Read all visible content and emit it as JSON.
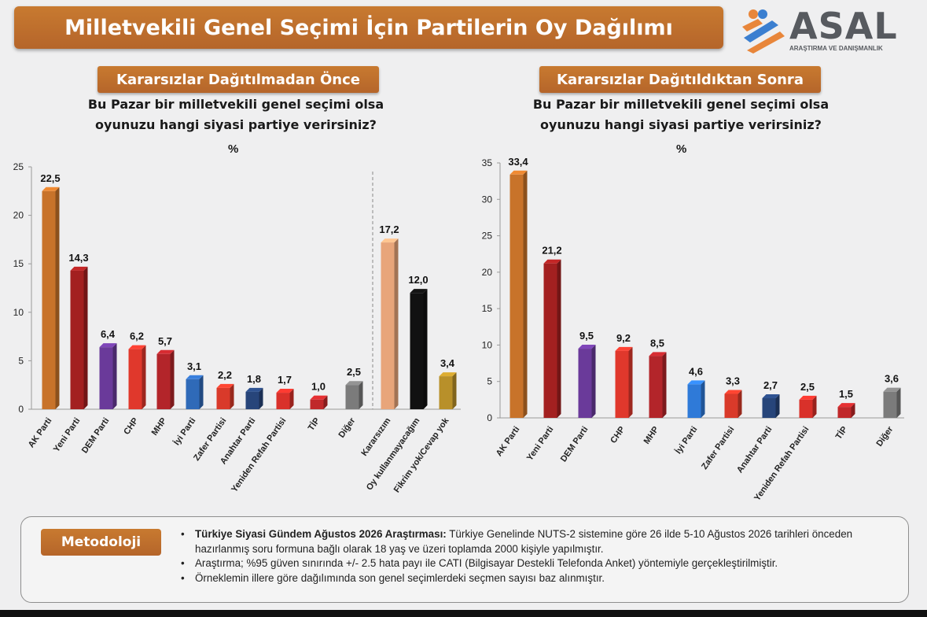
{
  "title": "Milletvekili Genel Seçimi İçin Partilerin Oy Dağılımı",
  "logo": {
    "name": "ASAL",
    "subtitle": "ARAŞTIRMA VE DANIŞMANLIK"
  },
  "panels": {
    "left": {
      "heading": "Kararsızlar Dağıtılmadan Önce",
      "question_line1": "Bu Pazar bir milletvekili genel seçimi olsa",
      "question_line2": "oyunuzu hangi siyasi partiye verirsiniz?",
      "unit": "%"
    },
    "right": {
      "heading": "Kararsızlar Dağıtıldıktan Sonra",
      "question_line1": "Bu Pazar bir milletvekili genel seçimi olsa",
      "question_line2": "oyunuzu hangi siyasi partiye verirsiniz?",
      "unit": "%"
    }
  },
  "chart_data": [
    {
      "type": "bar",
      "categories": [
        "AK Parti",
        "Yeni Parti",
        "DEM Parti",
        "CHP",
        "MHP",
        "İyi Parti",
        "Zafer Partisi",
        "Anahtar Parti",
        "Yeniden Refah Partisi",
        "TİP",
        "Diğer",
        "Kararsızım",
        "Oy kullanmayacağım",
        "Fikrim yok/Cevap yok"
      ],
      "values": [
        22.5,
        14.3,
        6.4,
        6.2,
        5.7,
        3.1,
        2.2,
        1.8,
        1.7,
        1.0,
        2.5,
        17.2,
        12.0,
        3.4
      ],
      "labels": [
        "22,5",
        "14,3",
        "6,4",
        "6,2",
        "5,7",
        "3,1",
        "2,2",
        "1,8",
        "1,7",
        "1,0",
        "2,5",
        "17,2",
        "12,0",
        "3,4"
      ],
      "colors": [
        "#c8732a",
        "#a32020",
        "#6a3a9a",
        "#e0382c",
        "#b3252a",
        "#2f6ab8",
        "#d93a2a",
        "#27457a",
        "#d9312a",
        "#c0282a",
        "#7b7b7b",
        "#e8a57a",
        "#111111",
        "#b8902a"
      ],
      "yticks": [
        "0",
        "5",
        "10",
        "15",
        "20",
        "25"
      ],
      "ylim": [
        0,
        25
      ],
      "xlabel": "",
      "ylabel": "%"
    },
    {
      "type": "bar",
      "categories": [
        "AK Parti",
        "Yeni Parti",
        "DEM Parti",
        "CHP",
        "MHP",
        "İyi Parti",
        "Zafer Partisi",
        "Anahtar Parti",
        "Yeniden Refah Partisi",
        "TİP",
        "Diğer"
      ],
      "values": [
        33.4,
        21.2,
        9.5,
        9.2,
        8.5,
        4.6,
        3.3,
        2.7,
        2.5,
        1.5,
        3.6
      ],
      "labels": [
        "33,4",
        "21,2",
        "9,5",
        "9,2",
        "8,5",
        "4,6",
        "3,3",
        "2,7",
        "2,5",
        "1,5",
        "3,6"
      ],
      "colors": [
        "#c8732a",
        "#a32020",
        "#6a3a9a",
        "#e0382c",
        "#b3252a",
        "#2f7ad8",
        "#d93a2a",
        "#27457a",
        "#d9312a",
        "#c0282a",
        "#7b7b7b"
      ],
      "yticks": [
        "0",
        "5",
        "10",
        "15",
        "20",
        "25",
        "30",
        "35"
      ],
      "ylim": [
        0,
        35
      ],
      "xlabel": "",
      "ylabel": "%"
    }
  ],
  "methodology": {
    "badge": "Metodoloji",
    "item1_bold": "Türkiye Siyasi Gündem Ağustos 2026 Araştırması:",
    "item1_text": " Türkiye Genelinde NUTS-2 sistemine göre 26 ilde 5-10 Ağustos 2026 tarihleri önceden hazırlanmış soru formuna bağlı olarak 18 yaş ve üzeri toplamda 2000 kişiyle yapılmıştır.",
    "item2": "Araştırma; %95 güven sınırında +/- 2.5 hata payı ile CATI (Bilgisayar Destekli Telefonda Anket) yöntemiyle gerçekleştirilmiştir.",
    "item3": "Örneklemin illere göre dağılımında son genel seçimlerdeki seçmen sayısı baz alınmıştır."
  }
}
